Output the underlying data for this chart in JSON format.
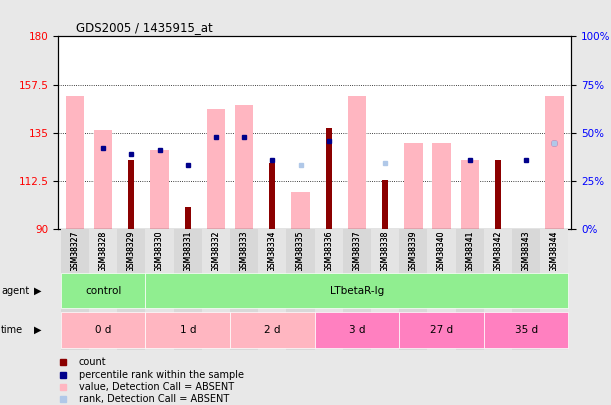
{
  "title": "GDS2005 / 1435915_at",
  "samples": [
    "GSM38327",
    "GSM38328",
    "GSM38329",
    "GSM38330",
    "GSM38331",
    "GSM38332",
    "GSM38333",
    "GSM38334",
    "GSM38335",
    "GSM38336",
    "GSM38337",
    "GSM38338",
    "GSM38339",
    "GSM38340",
    "GSM38341",
    "GSM38342",
    "GSM38343",
    "GSM38344"
  ],
  "count_tops": [
    90,
    90,
    122,
    90,
    100,
    90,
    90,
    121,
    90,
    137,
    90,
    113,
    90,
    90,
    90,
    122,
    90,
    90
  ],
  "pink_tops": [
    152,
    136,
    90,
    127,
    90,
    146,
    148,
    90,
    107,
    90,
    152,
    90,
    130,
    130,
    122,
    90,
    90,
    152
  ],
  "blue_sq_values": [
    -1,
    128,
    125,
    127,
    120,
    133,
    133,
    122,
    -1,
    131,
    -1,
    -1,
    -1,
    -1,
    122,
    -1,
    122,
    130
  ],
  "light_blue_sq_values": [
    -1,
    -1,
    -1,
    -1,
    -1,
    -1,
    -1,
    -1,
    120,
    -1,
    -1,
    121,
    -1,
    -1,
    -1,
    -1,
    -1,
    130
  ],
  "ymin": 90,
  "ymax": 180,
  "yticks_left": [
    90,
    112.5,
    135,
    157.5,
    180
  ],
  "yticks_right_labels": [
    "0%",
    "25%",
    "50%",
    "75%",
    "100%"
  ],
  "yticks_right_vals": [
    90,
    112.5,
    135,
    157.5,
    180
  ],
  "grid_vals": [
    112.5,
    135,
    157.5
  ],
  "bg_color": "#e8e8e8",
  "plot_bg": "#ffffff",
  "count_color": "#8B0000",
  "pink_color": "#FFB6C1",
  "blue_color": "#00008B",
  "light_blue_color": "#B0C8E8",
  "agent_control_color": "#90EE90",
  "agent_lt_color": "#90EE90",
  "time_colors": [
    "#FFB6C1",
    "#FFB6C1",
    "#FFB6C1",
    "#FF80C0",
    "#FF80C0",
    "#FF80C0"
  ],
  "time_labels": [
    "0 d",
    "1 d",
    "2 d",
    "3 d",
    "27 d",
    "35 d"
  ],
  "time_starts": [
    0,
    3,
    6,
    9,
    12,
    15
  ],
  "time_ends": [
    3,
    6,
    9,
    12,
    15,
    18
  ]
}
